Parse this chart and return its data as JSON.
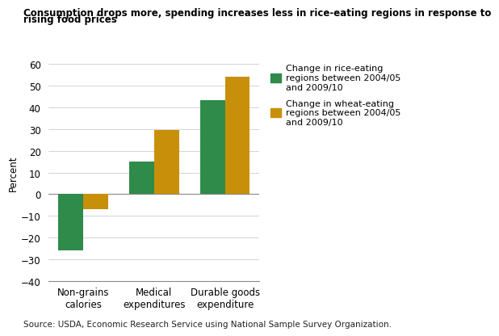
{
  "title_line1": "Consumption drops more, spending increases less in rice-eating regions in response to",
  "title_line2": "rising food prices",
  "categories": [
    "Non-grains\ncalories",
    "Medical\nexpenditures",
    "Durable goods\nexpenditure"
  ],
  "rice_values": [
    -26,
    15,
    43.5
  ],
  "wheat_values": [
    -7,
    29.5,
    54
  ],
  "rice_color": "#2e8b4a",
  "wheat_color": "#c8900a",
  "ylabel": "Percent",
  "ylim": [
    -40,
    60
  ],
  "yticks": [
    -40,
    -30,
    -20,
    -10,
    0,
    10,
    20,
    30,
    40,
    50,
    60
  ],
  "legend_rice": "Change in rice-eating\nregions between 2004/05\nand 2009/10",
  "legend_wheat": "Change in wheat-eating\nregions between 2004/05\nand 2009/10",
  "source": "Source: USDA, Economic Research Service using National Sample Survey Organization.",
  "bar_width": 0.35,
  "background_color": "#ffffff",
  "title_fontsize": 8.5,
  "label_fontsize": 8.5,
  "tick_fontsize": 8.5,
  "legend_fontsize": 8,
  "source_fontsize": 7.5
}
